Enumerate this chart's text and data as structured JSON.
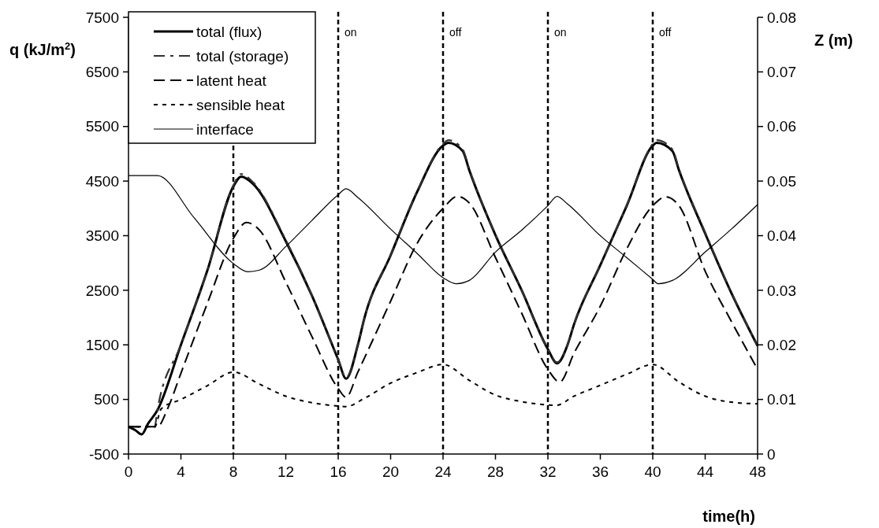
{
  "chart_data": {
    "type": "line",
    "xlabel": "time(h)",
    "ylabel": "q (kJ/m$^{2}$)",
    "y2label": "Z (m)",
    "xlim": [
      0,
      48
    ],
    "xticks": [
      0,
      4,
      8,
      12,
      16,
      20,
      24,
      28,
      32,
      36,
      40,
      44,
      48
    ],
    "ylim": [
      -500,
      7500
    ],
    "yticks": [
      -500,
      500,
      1500,
      2500,
      3500,
      4500,
      5500,
      6500,
      7500
    ],
    "y2lim": [
      0,
      0.08
    ],
    "y2ticks": [
      0,
      0.01,
      0.02,
      0.03,
      0.04,
      0.05,
      0.06,
      0.07,
      0.08
    ],
    "grid": false,
    "legend": "top left",
    "marker": "none",
    "ref_lines": [
      {
        "axis": "x",
        "value": 8,
        "line_style": "dashed"
      },
      {
        "axis": "x",
        "value": 16,
        "label": "on",
        "line_style": "dashed"
      },
      {
        "axis": "x",
        "value": 24,
        "label": "off",
        "line_style": "dashed"
      },
      {
        "axis": "x",
        "value": 32,
        "label": "on",
        "line_style": "dashed"
      },
      {
        "axis": "x",
        "value": 40,
        "label": "off",
        "line_style": "dashed"
      }
    ],
    "series": [
      {
        "name": "total (flux)",
        "color": "#000000",
        "line_style": "solid",
        "x": [
          0,
          0.5,
          1,
          1.5,
          2.2,
          4,
          6,
          8,
          8.6,
          9.5,
          12,
          14,
          16,
          16.6,
          17.5,
          18,
          20,
          22,
          24,
          24.4,
          25.5,
          26,
          28,
          30,
          32,
          32.7,
          33.5,
          34,
          36,
          38,
          40,
          40.3,
          41.5,
          42,
          44,
          46,
          48
        ],
        "values": [
          0,
          -60,
          -140,
          60,
          300,
          1500,
          2850,
          4400,
          4580,
          4450,
          3400,
          2400,
          1230,
          880,
          1500,
          1990,
          3140,
          4290,
          5150,
          5200,
          5050,
          4700,
          3510,
          2500,
          1420,
          1160,
          1500,
          1880,
          2960,
          4040,
          5150,
          5200,
          5050,
          4700,
          3540,
          2450,
          1480
        ]
      },
      {
        "name": "total (storage)",
        "color": "#333333",
        "line_style": "dashdot",
        "x": [
          0,
          1,
          2,
          2.2,
          4,
          6,
          8,
          8.6,
          9.5,
          12,
          14,
          16,
          16.6,
          17.5,
          18,
          20,
          22,
          24,
          24.4,
          25.5,
          26,
          28,
          30,
          32,
          32.7,
          33.5,
          34,
          36,
          38,
          40,
          40.3,
          41.5,
          42,
          44,
          46,
          48
        ],
        "values": [
          0,
          0,
          0,
          300,
          1500,
          2850,
          4420,
          4630,
          4480,
          3420,
          2400,
          1230,
          900,
          1500,
          1990,
          3150,
          4300,
          5180,
          5250,
          5080,
          4720,
          3520,
          2500,
          1420,
          1180,
          1500,
          1880,
          2960,
          4050,
          5180,
          5250,
          5080,
          4720,
          3560,
          2460,
          1480
        ]
      },
      {
        "name": "latent heat",
        "color": "#000000",
        "line_style": "dashed",
        "x": [
          0,
          2.2,
          3,
          4,
          6,
          8,
          9,
          10,
          12,
          14,
          16,
          16.6,
          17.5,
          20,
          22,
          24,
          25.1,
          26,
          28,
          30,
          32,
          32.9,
          34,
          36,
          38,
          40,
          41,
          42,
          44,
          46,
          48
        ],
        "values": [
          0,
          0,
          340,
          980,
          2250,
          3450,
          3740,
          3600,
          2650,
          1650,
          700,
          540,
          1000,
          2300,
          3350,
          4000,
          4220,
          4100,
          3100,
          2080,
          1050,
          820,
          1350,
          2210,
          3250,
          4050,
          4210,
          4050,
          2850,
          1930,
          1050
        ]
      },
      {
        "name": "sensible heat",
        "color": "#000000",
        "line_style": "dotted",
        "x": [
          0,
          2,
          2.5,
          4,
          6,
          8,
          10,
          12,
          14,
          16,
          16.6,
          18,
          20,
          22,
          24,
          26,
          28,
          30,
          32,
          32.6,
          34,
          36,
          38,
          40,
          42,
          44,
          46,
          48
        ],
        "values": [
          0,
          0,
          330,
          500,
          750,
          1000,
          780,
          560,
          440,
          380,
          370,
          520,
          800,
          990,
          1140,
          850,
          580,
          460,
          400,
          390,
          560,
          760,
          960,
          1140,
          820,
          560,
          450,
          420
        ]
      },
      {
        "name": "interface",
        "color": "#000000",
        "line_style": "solid",
        "axis": "y2",
        "x": [
          0,
          2.2,
          5,
          8,
          9.1,
          10,
          12,
          14,
          16,
          16.6,
          17.5,
          20,
          22,
          24,
          25,
          26,
          28,
          30,
          32,
          32.7,
          33.5,
          36,
          38,
          40,
          40.4,
          41.5,
          44,
          46,
          48
        ],
        "values": [
          0.051,
          0.051,
          0.0433,
          0.0349,
          0.0334,
          0.0337,
          0.038,
          0.0428,
          0.0475,
          0.0486,
          0.047,
          0.0412,
          0.0368,
          0.0323,
          0.0312,
          0.0318,
          0.037,
          0.041,
          0.0455,
          0.0472,
          0.0458,
          0.04,
          0.036,
          0.032,
          0.0312,
          0.0318,
          0.037,
          0.0412,
          0.0457
        ]
      }
    ]
  }
}
